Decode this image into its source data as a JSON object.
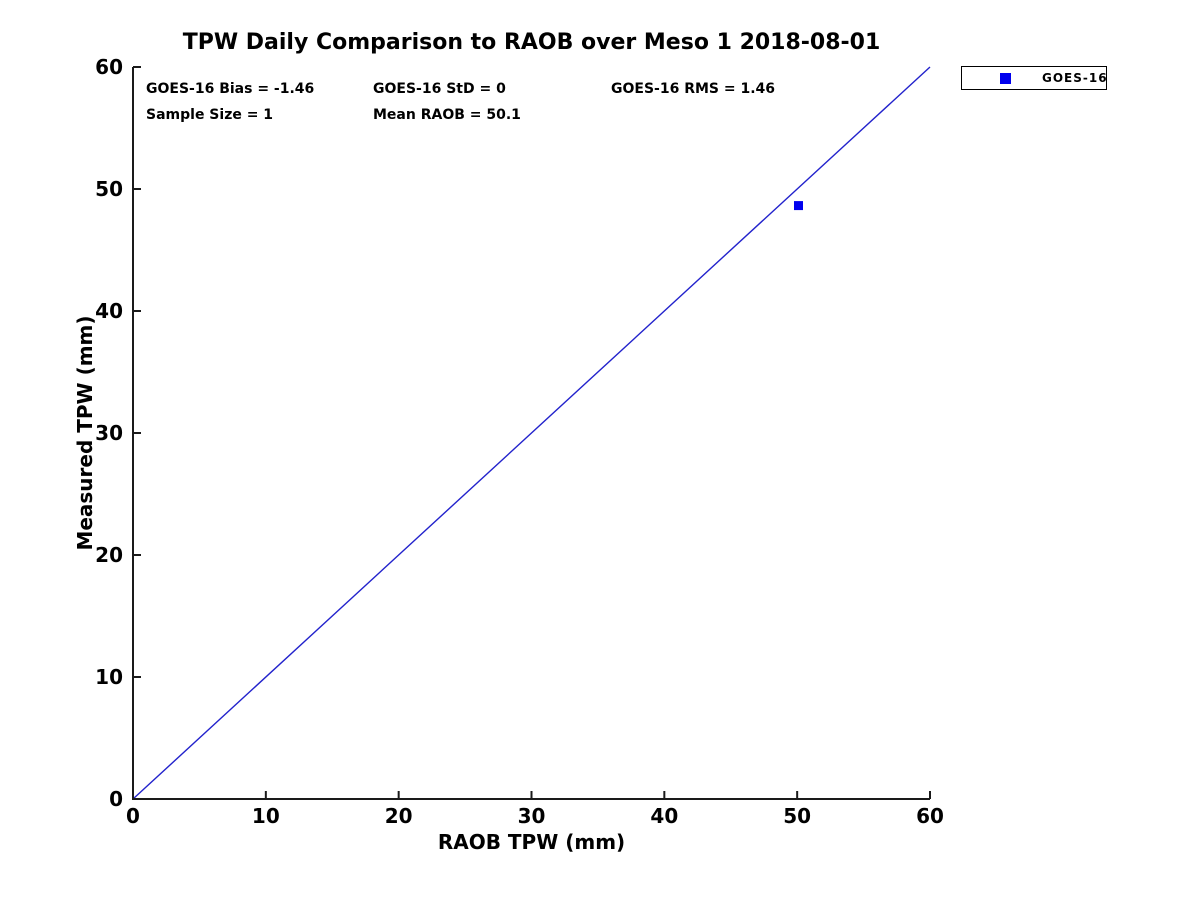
{
  "title": "TPW Daily Comparison to RAOB over Meso 1 2018-08-01",
  "stats": {
    "bias": "GOES-16 Bias = -1.46",
    "std": "GOES-16 StD = 0",
    "rms": "GOES-16 RMS = 1.46",
    "sample_size": "Sample Size = 1",
    "mean_raob": "Mean RAOB = 50.1"
  },
  "legend": {
    "position": "outside-top-right",
    "entries": [
      {
        "label": "GOES-16",
        "marker": "filled-square",
        "color": "#0000EE"
      }
    ]
  },
  "chart_data": {
    "type": "scatter",
    "title": "TPW Daily Comparison to RAOB over Meso 1 2018-08-01",
    "xlabel": "RAOB TPW (mm)",
    "ylabel": "Measured TPW (mm)",
    "xlim": [
      0,
      60
    ],
    "ylim": [
      0,
      60
    ],
    "xticks": [
      0,
      10,
      20,
      30,
      40,
      50,
      60
    ],
    "yticks": [
      0,
      10,
      20,
      30,
      40,
      50,
      60
    ],
    "grid": false,
    "axis_color": "#1a1a1a",
    "background": "#ffffff",
    "series": [
      {
        "name": "1:1 reference line",
        "type": "line",
        "color": "#2222CC",
        "width": 1.4,
        "points": [
          [
            0,
            0
          ],
          [
            60,
            60
          ]
        ]
      },
      {
        "name": "GOES-16",
        "type": "scatter",
        "marker": "square",
        "marker_size": 9,
        "color": "#0000EE",
        "points": [
          [
            50.1,
            48.64
          ]
        ]
      }
    ],
    "annotations": [
      "GOES-16 Bias = -1.46",
      "GOES-16 StD = 0",
      "GOES-16 RMS = 1.46",
      "Sample Size = 1",
      "Mean RAOB = 50.1"
    ]
  }
}
